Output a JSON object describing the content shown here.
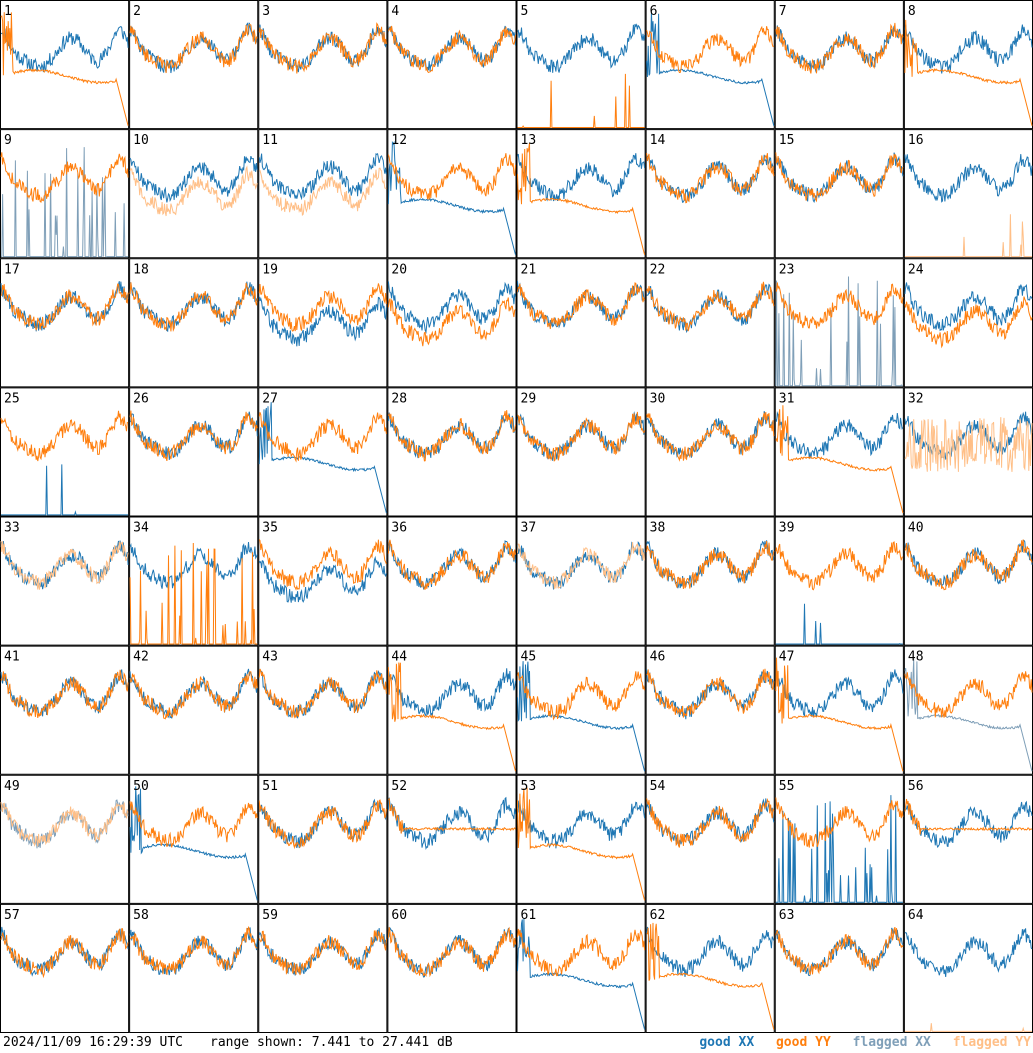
{
  "timestamp": "2024/11/09 16:29:39 UTC",
  "range_text": "range shown: 7.441 to 27.441 dB",
  "legend": [
    {
      "label": "good XX",
      "color": "#1f77b4"
    },
    {
      "label": "good YY",
      "color": "#ff7f0e"
    },
    {
      "label": "flagged XX",
      "color": "#7f9fb8"
    },
    {
      "label": "flagged YY",
      "color": "#ffbf87"
    }
  ],
  "chart_data": {
    "type": "line",
    "title": "",
    "ylim": [
      7.441,
      27.441
    ],
    "yunit": "dB",
    "grid": "8x8 small multiples, one per antenna",
    "panels": [
      {
        "id": "1",
        "xx": "good",
        "yy": "good",
        "shape": "yy_drop"
      },
      {
        "id": "2",
        "xx": "good",
        "yy": "good",
        "shape": "normal"
      },
      {
        "id": "3",
        "xx": "good",
        "yy": "good",
        "shape": "normal"
      },
      {
        "id": "4",
        "xx": "good",
        "yy": "good",
        "shape": "normal"
      },
      {
        "id": "5",
        "xx": "good",
        "yy": "good",
        "shape": "yy_flat"
      },
      {
        "id": "6",
        "xx": "good",
        "yy": "good",
        "shape": "xx_drop"
      },
      {
        "id": "7",
        "xx": "good",
        "yy": "good",
        "shape": "normal"
      },
      {
        "id": "8",
        "xx": "good",
        "yy": "good",
        "shape": "yy_drop"
      },
      {
        "id": "9",
        "xx": "flagged",
        "yy": "good",
        "shape": "xx_spiky"
      },
      {
        "id": "10",
        "xx": "good",
        "yy": "flagged",
        "shape": "yy_low"
      },
      {
        "id": "11",
        "xx": "good",
        "yy": "flagged",
        "shape": "yy_low"
      },
      {
        "id": "12",
        "xx": "good",
        "yy": "good",
        "shape": "xx_drop"
      },
      {
        "id": "13",
        "xx": "good",
        "yy": "good",
        "shape": "yy_drop"
      },
      {
        "id": "14",
        "xx": "good",
        "yy": "good",
        "shape": "normal"
      },
      {
        "id": "15",
        "xx": "good",
        "yy": "good",
        "shape": "normal"
      },
      {
        "id": "16",
        "xx": "good",
        "yy": "flagged",
        "shape": "yy_flat"
      },
      {
        "id": "17",
        "xx": "good",
        "yy": "good",
        "shape": "normal"
      },
      {
        "id": "18",
        "xx": "good",
        "yy": "good",
        "shape": "normal"
      },
      {
        "id": "19",
        "xx": "good",
        "yy": "good",
        "shape": "xx_low"
      },
      {
        "id": "20",
        "xx": "good",
        "yy": "good",
        "shape": "yy_low"
      },
      {
        "id": "21",
        "xx": "good",
        "yy": "good",
        "shape": "normal"
      },
      {
        "id": "22",
        "xx": "good",
        "yy": "good",
        "shape": "normal"
      },
      {
        "id": "23",
        "xx": "flagged",
        "yy": "good",
        "shape": "xx_spiky"
      },
      {
        "id": "24",
        "xx": "good",
        "yy": "good",
        "shape": "yy_low"
      },
      {
        "id": "25",
        "xx": "good",
        "yy": "good",
        "shape": "xx_flat"
      },
      {
        "id": "26",
        "xx": "good",
        "yy": "good",
        "shape": "normal"
      },
      {
        "id": "27",
        "xx": "good",
        "yy": "good",
        "shape": "xx_drop"
      },
      {
        "id": "28",
        "xx": "good",
        "yy": "good",
        "shape": "normal"
      },
      {
        "id": "29",
        "xx": "good",
        "yy": "good",
        "shape": "normal"
      },
      {
        "id": "30",
        "xx": "good",
        "yy": "good",
        "shape": "normal"
      },
      {
        "id": "31",
        "xx": "good",
        "yy": "good",
        "shape": "yy_drop"
      },
      {
        "id": "32",
        "xx": "good",
        "yy": "flagged",
        "shape": "yy_noisy"
      },
      {
        "id": "33",
        "xx": "good",
        "yy": "flagged",
        "shape": "normal"
      },
      {
        "id": "34",
        "xx": "good",
        "yy": "good",
        "shape": "yy_spiky"
      },
      {
        "id": "35",
        "xx": "good",
        "yy": "good",
        "shape": "xx_low"
      },
      {
        "id": "36",
        "xx": "good",
        "yy": "good",
        "shape": "normal"
      },
      {
        "id": "37",
        "xx": "good",
        "yy": "flagged",
        "shape": "normal"
      },
      {
        "id": "38",
        "xx": "good",
        "yy": "good",
        "shape": "normal"
      },
      {
        "id": "39",
        "xx": "good",
        "yy": "good",
        "shape": "xx_flat"
      },
      {
        "id": "40",
        "xx": "good",
        "yy": "good",
        "shape": "normal"
      },
      {
        "id": "41",
        "xx": "good",
        "yy": "good",
        "shape": "normal"
      },
      {
        "id": "42",
        "xx": "good",
        "yy": "good",
        "shape": "normal"
      },
      {
        "id": "43",
        "xx": "good",
        "yy": "good",
        "shape": "normal"
      },
      {
        "id": "44",
        "xx": "good",
        "yy": "good",
        "shape": "yy_drop"
      },
      {
        "id": "45",
        "xx": "good",
        "yy": "good",
        "shape": "xx_drop"
      },
      {
        "id": "46",
        "xx": "good",
        "yy": "good",
        "shape": "normal"
      },
      {
        "id": "47",
        "xx": "good",
        "yy": "good",
        "shape": "yy_drop"
      },
      {
        "id": "48",
        "xx": "flagged",
        "yy": "good",
        "shape": "xx_drop"
      },
      {
        "id": "49",
        "xx": "flagged",
        "yy": "flagged",
        "shape": "normal"
      },
      {
        "id": "50",
        "xx": "good",
        "yy": "good",
        "shape": "xx_drop"
      },
      {
        "id": "51",
        "xx": "good",
        "yy": "good",
        "shape": "normal"
      },
      {
        "id": "52",
        "xx": "good",
        "yy": "good",
        "shape": "yy_flat_mid"
      },
      {
        "id": "53",
        "xx": "good",
        "yy": "good",
        "shape": "yy_drop"
      },
      {
        "id": "54",
        "xx": "good",
        "yy": "good",
        "shape": "normal"
      },
      {
        "id": "55",
        "xx": "good",
        "yy": "good",
        "shape": "xx_spiky"
      },
      {
        "id": "56",
        "xx": "good",
        "yy": "good",
        "shape": "yy_flat_mid"
      },
      {
        "id": "57",
        "xx": "good",
        "yy": "good",
        "shape": "normal"
      },
      {
        "id": "58",
        "xx": "good",
        "yy": "good",
        "shape": "normal"
      },
      {
        "id": "59",
        "xx": "good",
        "yy": "good",
        "shape": "normal"
      },
      {
        "id": "60",
        "xx": "good",
        "yy": "good",
        "shape": "normal"
      },
      {
        "id": "61",
        "xx": "good",
        "yy": "good",
        "shape": "xx_drop"
      },
      {
        "id": "62",
        "xx": "good",
        "yy": "good",
        "shape": "yy_drop"
      },
      {
        "id": "63",
        "xx": "good",
        "yy": "good",
        "shape": "normal"
      },
      {
        "id": "64",
        "xx": "good",
        "yy": "flagged",
        "shape": "yy_flat"
      }
    ]
  }
}
